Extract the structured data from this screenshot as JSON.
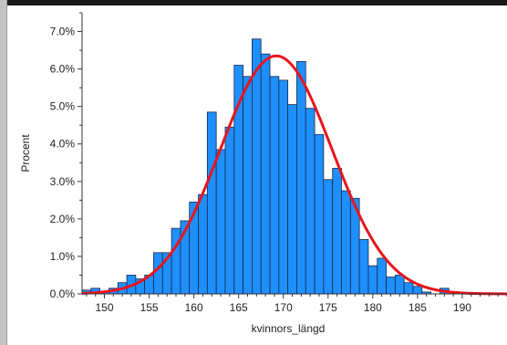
{
  "colors": {
    "bar_fill": "#1e8fff",
    "bar_stroke": "#1a2a44",
    "curve": "#e8141c",
    "background": "#ffffff",
    "frame": "#1a1a1a"
  },
  "chart_data": {
    "type": "bar",
    "title": "",
    "xlabel": "kvinnors_längd",
    "ylabel": "Procent",
    "bin_width": 1.0,
    "xlim": [
      147.5,
      195.0
    ],
    "ylim": [
      0,
      7.5
    ],
    "xticks": [
      150,
      155,
      160,
      165,
      170,
      175,
      180,
      185,
      190
    ],
    "xtick_labels": [
      "150",
      "155",
      "160",
      "165",
      "170",
      "175",
      "180",
      "185",
      "190"
    ],
    "yticks": [
      0,
      1,
      2,
      3,
      4,
      5,
      6,
      7
    ],
    "ytick_labels": [
      "0.0%",
      "1.0%",
      "2.0%",
      "3.0%",
      "4.0%",
      "5.0%",
      "6.0%",
      "7.0%"
    ],
    "bins": [
      148,
      149,
      150,
      151,
      152,
      153,
      154,
      155,
      156,
      157,
      158,
      159,
      160,
      161,
      162,
      163,
      164,
      165,
      166,
      167,
      168,
      169,
      170,
      171,
      172,
      173,
      174,
      175,
      176,
      177,
      178,
      179,
      180,
      181,
      182,
      183,
      184,
      185,
      186,
      187,
      188,
      189
    ],
    "values": [
      0.1,
      0.15,
      0.05,
      0.15,
      0.3,
      0.5,
      0.4,
      0.5,
      1.1,
      1.1,
      1.75,
      1.95,
      2.45,
      2.65,
      4.85,
      3.85,
      4.45,
      6.1,
      5.8,
      6.8,
      6.4,
      5.8,
      5.7,
      5.05,
      6.2,
      4.95,
      4.25,
      3.05,
      3.35,
      2.75,
      2.55,
      1.45,
      0.75,
      0.95,
      0.45,
      0.5,
      0.3,
      0.2,
      0.05,
      0.0,
      0.15,
      0.0
    ],
    "grid": false,
    "legend": "none",
    "series": [
      {
        "type": "histogram"
      },
      {
        "type": "normal-curve",
        "mean": 169.2,
        "sd": 6.25,
        "peak_percent": 6.35
      }
    ]
  }
}
